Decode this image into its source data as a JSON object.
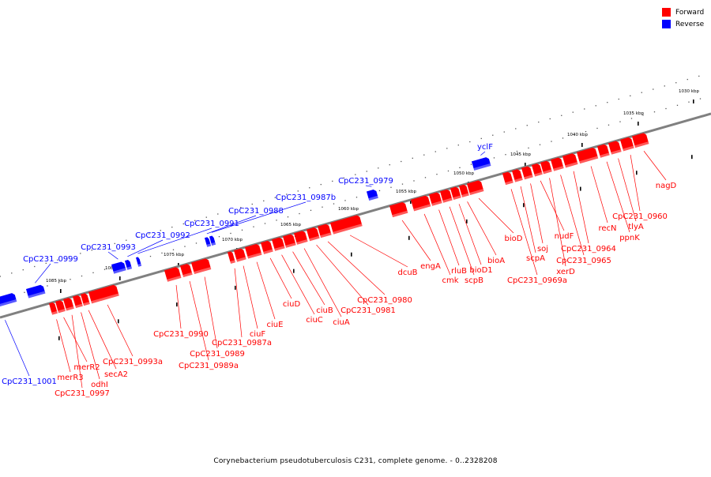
{
  "caption": "Corynebacterium pseudotuberculosis C231, complete genome. - 0..2328208",
  "legend": [
    {
      "label": "Forward",
      "color": "#ff0000"
    },
    {
      "label": "Reverse",
      "color": "#0000ff"
    }
  ],
  "colors": {
    "forward": "#ff0000",
    "reverse": "#0000ff",
    "backbone": "#808080"
  },
  "scale_labels": [
    "1030 kbp",
    "1035 kbp",
    "1040 kbp",
    "1045 kbp",
    "1050 kbp",
    "1055 kbp",
    "1060 kbp",
    "1065 kbp",
    "1070 kbp",
    "1075 kbp",
    "1080 kbp",
    "1085 kbp"
  ],
  "reverse_genes": [
    "yclF",
    "CpC231_0979",
    "CpC231_0987b",
    "CpC231_0988",
    "CpC231_0991",
    "CpC231_0992",
    "CpC231_0993",
    "CpC231_0999",
    "CpC231_1001"
  ],
  "forward_genes": [
    "nagD",
    "CpC231_0960",
    "tlyA",
    "ppnK",
    "recN",
    "CpC231_0964",
    "CpC231_0965",
    "xerD",
    "nudF",
    "soj",
    "scpA",
    "CpC231_0969a",
    "bioD",
    "bioA",
    "bioD1",
    "scpB",
    "rluB",
    "cmk",
    "engA",
    "dcuB",
    "CpC231_0980",
    "CpC231_0981",
    "ciuA",
    "ciuB",
    "ciuC",
    "ciuD",
    "ciuE",
    "ciuF",
    "CpC231_0987a",
    "CpC231_0989",
    "CpC231_0989a",
    "CpC231_0990",
    "CpC231_0993a",
    "secA2",
    "odhI",
    "CpC231_0997",
    "merR2",
    "merR3"
  ]
}
